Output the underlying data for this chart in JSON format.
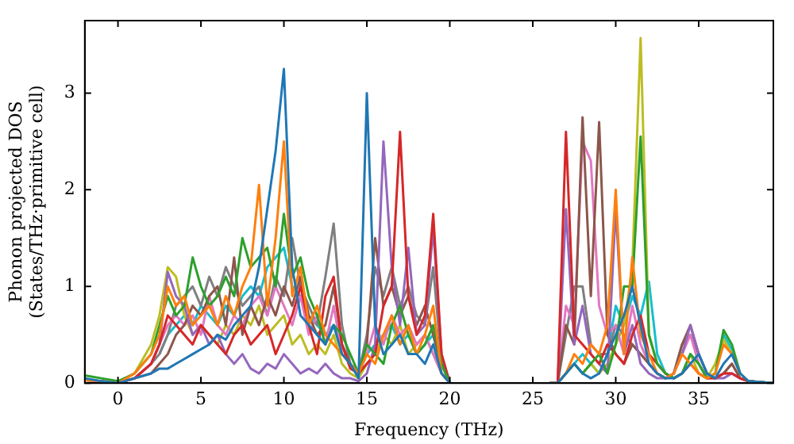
{
  "chart_data": {
    "type": "line",
    "xlabel": "Frequency (THz)",
    "ylabel": "Phonon projected DOS\n(States/THz·primitive cell)",
    "xlim": [
      -2,
      39.5
    ],
    "ylim": [
      0,
      3.75
    ],
    "xticks": [
      0,
      5,
      10,
      15,
      20,
      25,
      30,
      35
    ],
    "yticks": [
      0,
      1,
      2,
      3
    ],
    "grid": false,
    "legend": false,
    "marker": "none",
    "line_style": "solid",
    "x": [
      -2,
      -1,
      0,
      1,
      2,
      2.5,
      3,
      3.5,
      4,
      4.5,
      5,
      5.5,
      6,
      6.5,
      7,
      7.5,
      8,
      8.5,
      9,
      9.5,
      10,
      10.5,
      11,
      11.5,
      12,
      12.5,
      13,
      13.5,
      14,
      14.5,
      15,
      15.5,
      16,
      16.5,
      17,
      17.5,
      18,
      18.5,
      19,
      19.5,
      20,
      21,
      26,
      26.5,
      27,
      27.5,
      28,
      28.5,
      29,
      29.5,
      30,
      30.5,
      31,
      31.5,
      32,
      32.5,
      33,
      33.5,
      34,
      34.5,
      35,
      35.5,
      36,
      36.5,
      37,
      37.5,
      38,
      39.5
    ],
    "series": [
      {
        "color": "#1f77b4",
        "values": [
          0.05,
          0.02,
          0,
          0.05,
          0.1,
          0.15,
          0.15,
          0.2,
          0.25,
          0.3,
          0.35,
          0.4,
          0.5,
          0.45,
          0.6,
          0.7,
          0.8,
          1.2,
          1.8,
          2.4,
          3.25,
          1.2,
          0.7,
          0.6,
          0.5,
          0.4,
          0.6,
          0.3,
          0.2,
          0.05,
          3.0,
          0.6,
          0.3,
          0.4,
          0.5,
          0.3,
          0.3,
          0.2,
          0.4,
          0.1,
          0,
          null,
          0,
          0,
          0.1,
          0.2,
          0.1,
          0.05,
          0.1,
          0.3,
          0.5,
          0.7,
          1.0,
          0.6,
          0.2,
          0.1,
          0.05,
          0.05,
          0.1,
          0.2,
          0.3,
          0.1,
          0.05,
          0.2,
          0.3,
          0.1,
          0.02,
          0
        ]
      },
      {
        "color": "#ff7f0e",
        "values": [
          0.03,
          0.02,
          0,
          0.1,
          0.3,
          0.5,
          1.0,
          0.8,
          0.9,
          0.6,
          0.7,
          0.8,
          0.6,
          0.9,
          0.7,
          1.0,
          1.2,
          2.05,
          0.8,
          1.5,
          2.5,
          0.9,
          1.2,
          0.6,
          0.8,
          0.5,
          0.4,
          0.3,
          0.2,
          0.1,
          0.3,
          0.2,
          0.5,
          0.7,
          0.4,
          0.6,
          0.3,
          0.5,
          0.8,
          0.1,
          0,
          null,
          0,
          0,
          0.1,
          0.3,
          0.2,
          0.4,
          0.3,
          0.6,
          2.0,
          0.3,
          1.3,
          0.5,
          0.3,
          0.1,
          0.05,
          0.1,
          0.3,
          0.2,
          0.1,
          0.05,
          0.1,
          0.4,
          0.3,
          0.1,
          null,
          null
        ]
      },
      {
        "color": "#2ca02c",
        "values": [
          0.08,
          0.05,
          0.02,
          0.1,
          0.3,
          0.6,
          0.9,
          0.7,
          0.8,
          1.3,
          1.0,
          0.8,
          0.9,
          1.1,
          0.9,
          1.5,
          1.2,
          1.3,
          1.4,
          1.0,
          1.75,
          1.1,
          1.3,
          0.9,
          0.7,
          0.4,
          0.6,
          0.5,
          0.3,
          0.1,
          0.4,
          0.3,
          0.2,
          0.6,
          0.8,
          0.5,
          0.3,
          0.4,
          0.6,
          0.2,
          0,
          null,
          0,
          0,
          0.1,
          0.2,
          0.1,
          0.2,
          0.3,
          0.1,
          0.4,
          1.0,
          1.0,
          2.55,
          0.5,
          0.2,
          0.1,
          0.05,
          0.1,
          0.3,
          0.2,
          0.05,
          0.1,
          0.55,
          0.4,
          0.1,
          0.02,
          0
        ]
      },
      {
        "color": "#d62728",
        "values": [
          null,
          null,
          0,
          0.05,
          0.2,
          0.4,
          0.7,
          0.6,
          0.5,
          0.4,
          0.6,
          0.5,
          0.4,
          0.3,
          0.5,
          0.6,
          0.4,
          0.5,
          0.6,
          0.3,
          0.5,
          0.7,
          1.0,
          0.6,
          0.3,
          0.9,
          1.1,
          0.4,
          0.15,
          0.1,
          0.2,
          0.3,
          0.8,
          1.0,
          2.6,
          0.9,
          0.5,
          0.7,
          1.75,
          0.3,
          0,
          null,
          0,
          0,
          2.6,
          0.5,
          0.4,
          0.3,
          0.2,
          0.4,
          0.3,
          0.2,
          0.5,
          0.7,
          0.3,
          0.2,
          0.1,
          0.05,
          0.1,
          0.2,
          0.1,
          0.05,
          0.05,
          0.1,
          0.1,
          0.05,
          0.02,
          0
        ]
      },
      {
        "color": "#9467bd",
        "values": [
          0.03,
          0.02,
          0,
          0.05,
          0.2,
          0.4,
          1.15,
          0.9,
          0.8,
          0.5,
          0.6,
          0.4,
          0.5,
          0.3,
          0.2,
          0.3,
          0.15,
          0.1,
          0.2,
          0.15,
          0.3,
          0.2,
          0.1,
          0.15,
          0.1,
          0.2,
          0.1,
          0.05,
          0.05,
          0.02,
          0.1,
          0.4,
          2.5,
          1.2,
          0.6,
          1.4,
          0.5,
          0.6,
          1.6,
          0.3,
          0,
          null,
          0,
          0,
          1.8,
          0.4,
          0.8,
          0.3,
          0.2,
          0.1,
          1.8,
          0.3,
          0.6,
          0.2,
          0.1,
          0.05,
          0.05,
          0.1,
          0.3,
          0.6,
          0.3,
          0.1,
          0.05,
          0.05,
          0.1,
          0.05,
          0.02,
          0
        ]
      },
      {
        "color": "#8c564b",
        "values": [
          0.03,
          0.02,
          0,
          0.05,
          0.1,
          0.2,
          0.3,
          0.5,
          0.6,
          0.8,
          0.7,
          0.9,
          1.0,
          0.6,
          1.3,
          0.5,
          0.8,
          0.6,
          0.9,
          0.7,
          1.0,
          0.8,
          1.1,
          0.7,
          0.5,
          0.6,
          1.0,
          0.4,
          0.2,
          0.1,
          0.4,
          1.5,
          0.8,
          1.0,
          0.7,
          0.9,
          0.6,
          0.8,
          0.5,
          0.2,
          0,
          null,
          0,
          0,
          0.6,
          0.4,
          2.75,
          0.9,
          2.7,
          0.5,
          0.3,
          0.2,
          0.4,
          0.3,
          0.2,
          0.1,
          0.05,
          0.1,
          0.4,
          0.6,
          0.3,
          0.1,
          0.05,
          0.1,
          0.2,
          0.05,
          0.02,
          0
        ]
      },
      {
        "color": "#e377c2",
        "values": [
          null,
          null,
          0,
          0.05,
          0.2,
          0.4,
          0.6,
          0.7,
          0.6,
          0.7,
          0.5,
          0.9,
          0.6,
          0.5,
          0.7,
          0.6,
          0.8,
          0.9,
          0.7,
          1.0,
          0.8,
          0.6,
          0.9,
          0.5,
          0.7,
          0.4,
          0.8,
          0.3,
          0.2,
          0.1,
          0.3,
          0.6,
          0.4,
          0.7,
          0.5,
          0.6,
          0.4,
          0.5,
          0.3,
          0.1,
          0,
          null,
          0,
          0,
          0.8,
          0.6,
          2.5,
          2.3,
          0.8,
          0.5,
          0.6,
          0.3,
          0.8,
          0.4,
          0.2,
          0.1,
          0.05,
          0.1,
          0.3,
          0.5,
          0.2,
          0.05,
          0.05,
          0.1,
          0.1,
          0.05,
          0.02,
          0
        ]
      },
      {
        "color": "#7f7f7f",
        "values": [
          0.03,
          0.02,
          0,
          0.05,
          0.2,
          0.3,
          0.5,
          0.8,
          0.9,
          1.0,
          0.8,
          1.1,
          0.9,
          1.2,
          1.0,
          0.8,
          0.9,
          1.0,
          0.7,
          1.1,
          0.9,
          1.5,
          1.0,
          0.8,
          0.6,
          1.1,
          1.65,
          0.6,
          0.2,
          0.1,
          0.5,
          1.2,
          0.9,
          1.2,
          0.8,
          1.0,
          0.7,
          0.6,
          1.2,
          0.2,
          0,
          null,
          0,
          0,
          0.5,
          1.0,
          1.0,
          0.4,
          0.3,
          0.3,
          0.6,
          0.5,
          0.4,
          0.3,
          0.2,
          0.1,
          0.05,
          0.1,
          0.4,
          0.5,
          0.3,
          0.1,
          0.05,
          0.1,
          0.2,
          0.05,
          0.02,
          0
        ]
      },
      {
        "color": "#bcbd22",
        "values": [
          null,
          null,
          0,
          0.1,
          0.4,
          0.7,
          1.2,
          1.1,
          0.7,
          0.5,
          0.6,
          0.5,
          0.4,
          0.6,
          0.5,
          0.7,
          0.6,
          0.8,
          0.5,
          0.6,
          0.7,
          0.4,
          0.5,
          0.3,
          0.4,
          0.3,
          0.5,
          0.2,
          0.1,
          0.05,
          0.2,
          0.3,
          0.5,
          0.4,
          0.6,
          0.3,
          0.4,
          0.5,
          0.3,
          0.1,
          0,
          null,
          0,
          0,
          0.1,
          0.2,
          0.1,
          0.2,
          0.1,
          0.2,
          0.4,
          0.6,
          1.2,
          3.57,
          0.5,
          0.2,
          0.1,
          0.05,
          0.1,
          0.3,
          0.1,
          0.05,
          0.2,
          0.45,
          0.3,
          0.1,
          null,
          null
        ]
      },
      {
        "color": "#17becf",
        "values": [
          null,
          null,
          null,
          null,
          null,
          0.3,
          0.5,
          0.6,
          0.7,
          0.6,
          0.8,
          0.7,
          0.6,
          0.8,
          0.7,
          0.9,
          1.0,
          0.9,
          1.2,
          1.3,
          1.4,
          1.0,
          0.9,
          0.7,
          0.6,
          0.5,
          0.6,
          0.4,
          0.2,
          0.1,
          0.3,
          0.4,
          0.5,
          0.6,
          0.4,
          0.5,
          0.3,
          0.4,
          0.5,
          0.1,
          0,
          null,
          0,
          0,
          0.1,
          0.2,
          0.3,
          0.2,
          0.1,
          0.3,
          0.8,
          0.6,
          0.9,
          0.7,
          1.05,
          0.3,
          0.1,
          0.05,
          0.1,
          0.3,
          0.2,
          0.05,
          0.1,
          0.5,
          0.35,
          0.1,
          null,
          null
        ]
      }
    ]
  }
}
